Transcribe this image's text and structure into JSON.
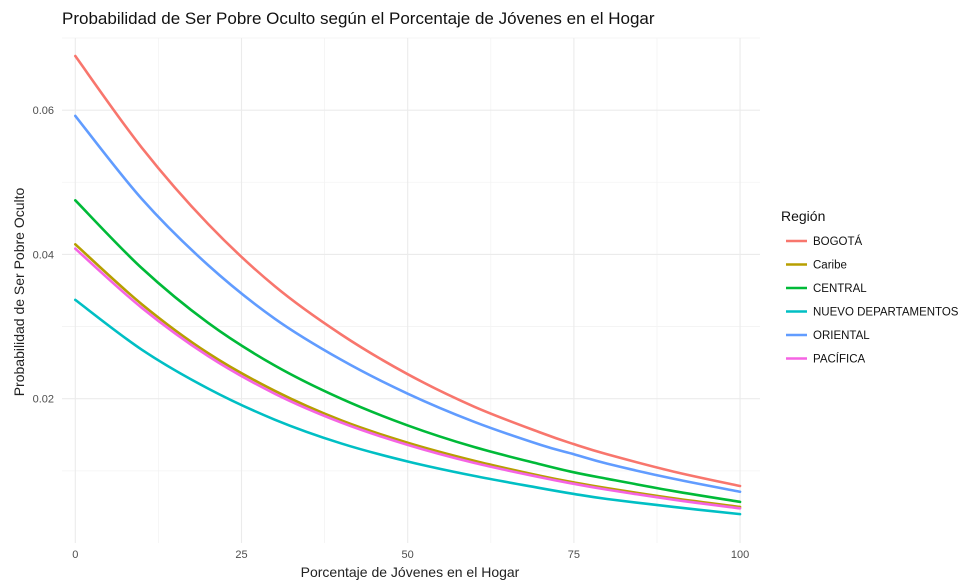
{
  "chart_data": {
    "type": "line",
    "title": "Probabilidad de Ser Pobre Oculto según el Porcentaje de Jóvenes en el Hogar",
    "xlabel": "Porcentaje de Jóvenes en el Hogar",
    "ylabel": "Probabilidad de Ser Pobre Oculto",
    "xlim": [
      -2,
      103
    ],
    "ylim": [
      0.0,
      0.07
    ],
    "x_ticks": [
      0,
      25,
      50,
      75,
      100
    ],
    "x_tick_labels": [
      "0",
      "25",
      "50",
      "75",
      "100"
    ],
    "y_ticks": [
      0.02,
      0.04,
      0.06
    ],
    "y_tick_labels": [
      "0.02",
      "0.04",
      "0.06"
    ],
    "grid": true,
    "legend": {
      "title": "Región",
      "position": "right"
    },
    "x": [
      0,
      10,
      20,
      30,
      40,
      50,
      60,
      70,
      75,
      80,
      90,
      100
    ],
    "series": [
      {
        "name": "BOGOTÁ",
        "color": "#F8766D",
        "values": [
          0.0675,
          0.0548,
          0.0442,
          0.0356,
          0.0289,
          0.0234,
          0.0189,
          0.0153,
          0.0137,
          0.0123,
          0.0099,
          0.0079
        ]
      },
      {
        "name": "Caribe",
        "color": "#B79F00",
        "values": [
          0.0414,
          0.0331,
          0.0263,
          0.0211,
          0.017,
          0.0139,
          0.0114,
          0.0093,
          0.0084,
          0.0076,
          0.0062,
          0.005
        ]
      },
      {
        "name": "CENTRAL",
        "color": "#00BA38",
        "values": [
          0.0475,
          0.0381,
          0.0305,
          0.0246,
          0.02,
          0.0163,
          0.0133,
          0.0109,
          0.0098,
          0.0089,
          0.0072,
          0.0057
        ]
      },
      {
        "name": "NUEVO DEPARTAMENTOS",
        "color": "#00BFC4",
        "values": [
          0.0337,
          0.0268,
          0.0214,
          0.0171,
          0.0138,
          0.0113,
          0.0093,
          0.0076,
          0.0068,
          0.0061,
          0.005,
          0.004
        ]
      },
      {
        "name": "ORIENTAL",
        "color": "#619CFF",
        "values": [
          0.0592,
          0.0477,
          0.0385,
          0.0311,
          0.0254,
          0.0207,
          0.0168,
          0.0136,
          0.0123,
          0.011,
          0.0089,
          0.0071
        ]
      },
      {
        "name": "PACÍFICA",
        "color": "#F564E3",
        "values": [
          0.0408,
          0.0326,
          0.0259,
          0.0207,
          0.0167,
          0.0136,
          0.0111,
          0.0091,
          0.0082,
          0.0074,
          0.006,
          0.0048
        ]
      }
    ]
  }
}
